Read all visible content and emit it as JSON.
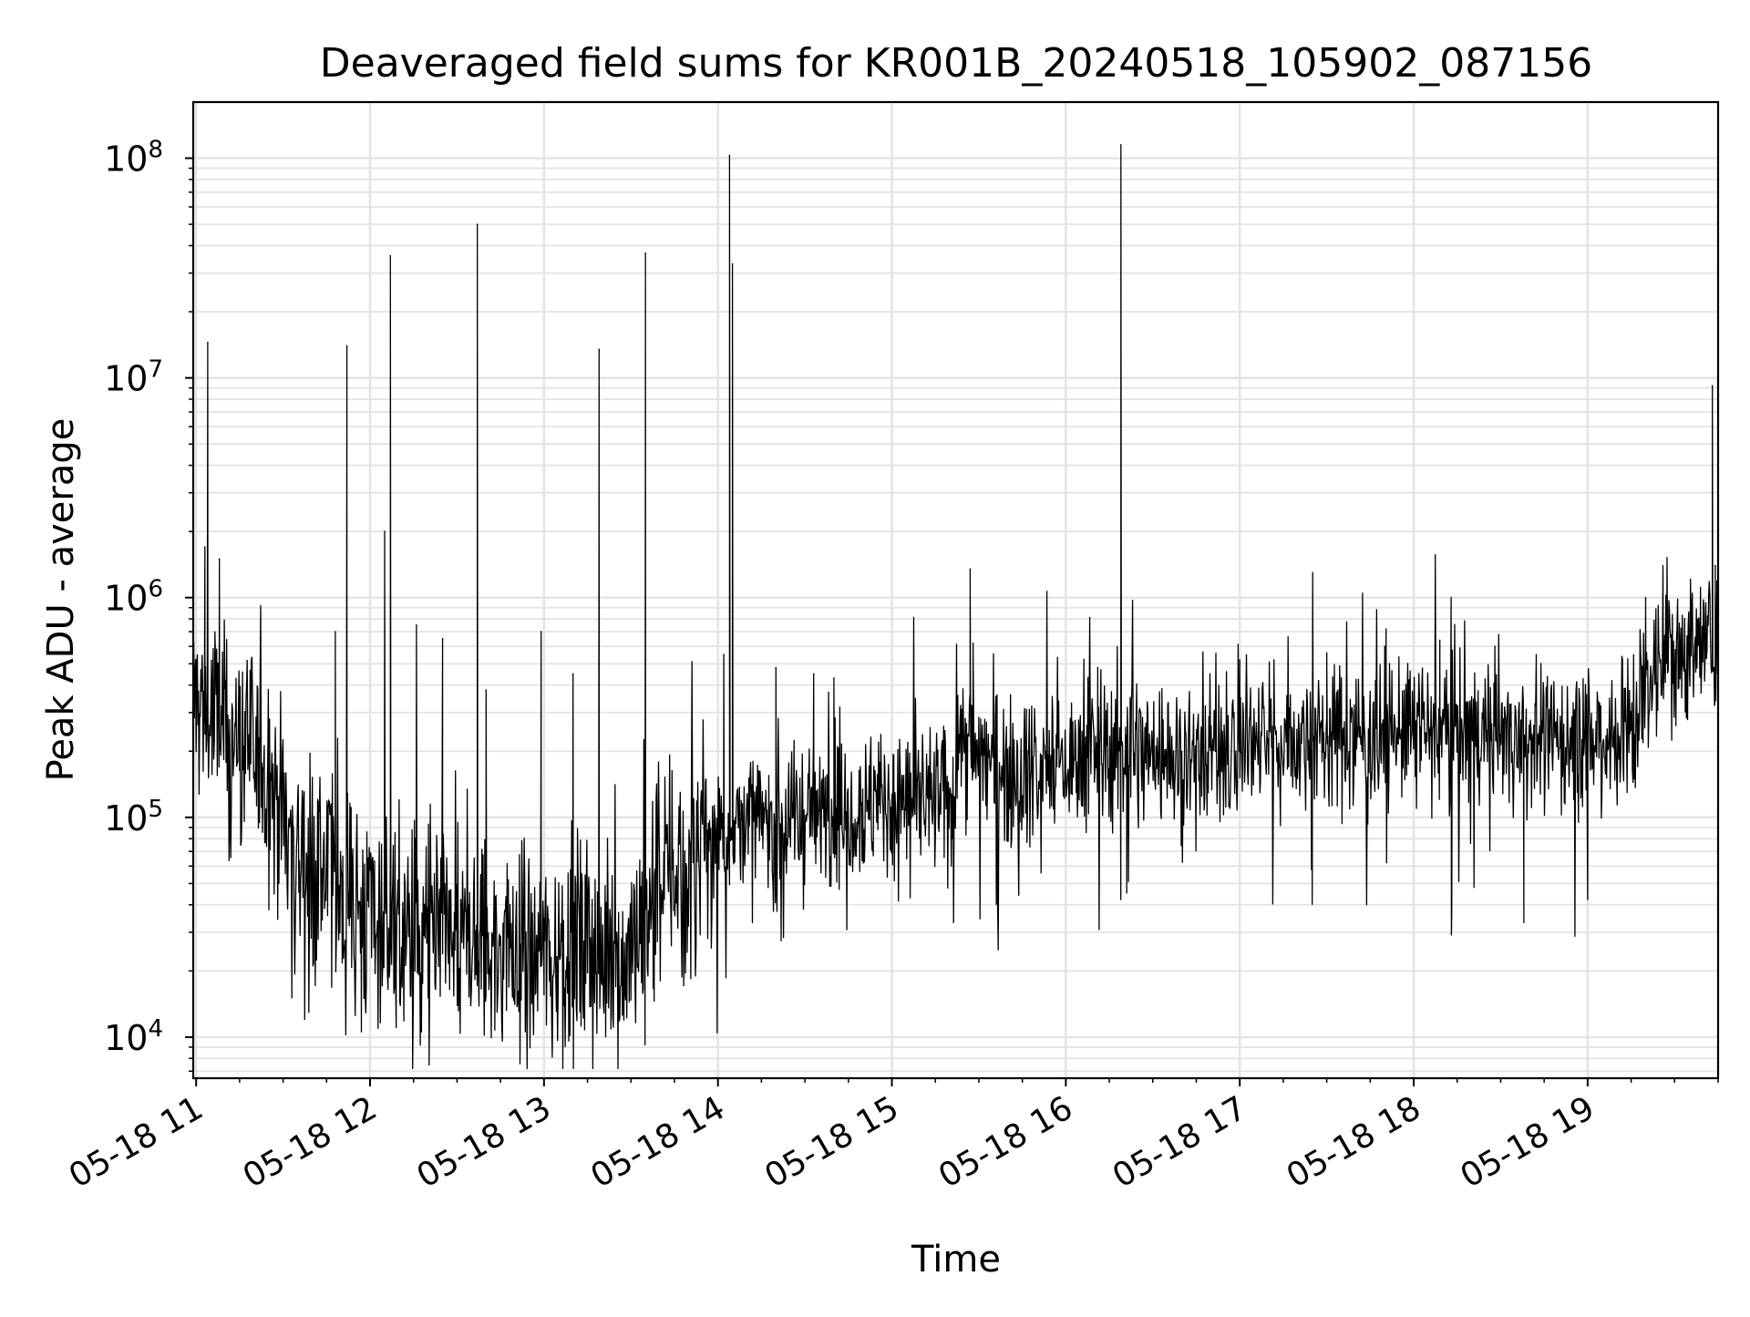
{
  "chart_data": {
    "type": "line",
    "title": "Deaveraged field sums for KR001B_20240518_105902_087156",
    "xlabel": "Time",
    "ylabel": "Peak ADU - average",
    "yscale": "log",
    "ylim": [
      6500,
      180000000
    ],
    "xlim": [
      "2024-05-18 10:59",
      "2024-05-18 19:45"
    ],
    "grid": true,
    "line_color": "#000000",
    "grid_color": "#e3e3e3",
    "x_ticks": [
      {
        "t": "2024-05-18 11:00",
        "label": "05-18 11"
      },
      {
        "t": "2024-05-18 12:00",
        "label": "05-18 12"
      },
      {
        "t": "2024-05-18 13:00",
        "label": "05-18 13"
      },
      {
        "t": "2024-05-18 14:00",
        "label": "05-18 14"
      },
      {
        "t": "2024-05-18 15:00",
        "label": "05-18 15"
      },
      {
        "t": "2024-05-18 16:00",
        "label": "05-18 16"
      },
      {
        "t": "2024-05-18 17:00",
        "label": "05-18 17"
      },
      {
        "t": "2024-05-18 18:00",
        "label": "05-18 18"
      },
      {
        "t": "2024-05-18 19:00",
        "label": "05-18 19"
      }
    ],
    "y_ticks": [
      {
        "value": 10000,
        "base": "10",
        "exp": "4"
      },
      {
        "value": 100000,
        "base": "10",
        "exp": "5"
      },
      {
        "value": 1000000,
        "base": "10",
        "exp": "6"
      },
      {
        "value": 10000000,
        "base": "10",
        "exp": "7"
      },
      {
        "value": 100000000,
        "base": "10",
        "exp": "8"
      }
    ],
    "series": [
      {
        "baseline": {
          "x": [
            "2024-05-18 10:59",
            "2024-05-18 11:05",
            "2024-05-18 11:15",
            "2024-05-18 11:25",
            "2024-05-18 11:35",
            "2024-05-18 11:45",
            "2024-05-18 11:55",
            "2024-05-18 12:10",
            "2024-05-18 12:30",
            "2024-05-18 12:50",
            "2024-05-18 13:10",
            "2024-05-18 13:25",
            "2024-05-18 13:32",
            "2024-05-18 13:40",
            "2024-05-18 13:50",
            "2024-05-18 14:00",
            "2024-05-18 14:20",
            "2024-05-18 14:40",
            "2024-05-18 15:00",
            "2024-05-18 15:20",
            "2024-05-18 15:23",
            "2024-05-18 15:40",
            "2024-05-18 16:00",
            "2024-05-18 16:20",
            "2024-05-18 16:40",
            "2024-05-18 17:00",
            "2024-05-18 17:30",
            "2024-05-18 18:00",
            "2024-05-18 18:30",
            "2024-05-18 19:00",
            "2024-05-18 19:15",
            "2024-05-18 19:25",
            "2024-05-18 19:45"
          ],
          "y": [
            350000,
            280000,
            220000,
            160000,
            70000,
            55000,
            40000,
            30000,
            26000,
            25000,
            26000,
            22000,
            30000,
            55000,
            60000,
            90000,
            95000,
            110000,
            120000,
            120000,
            220000,
            170000,
            170000,
            210000,
            190000,
            220000,
            230000,
            250000,
            240000,
            220000,
            260000,
            560000,
            620000
          ]
        },
        "spikes": [
          {
            "t": "2024-05-18 11:04",
            "y": 14500000
          },
          {
            "t": "2024-05-18 11:03",
            "y": 1700000
          },
          {
            "t": "2024-05-18 11:08",
            "y": 1500000
          },
          {
            "t": "2024-05-18 11:52",
            "y": 14000000
          },
          {
            "t": "2024-05-18 11:48",
            "y": 700000
          },
          {
            "t": "2024-05-18 12:05",
            "y": 2000000
          },
          {
            "t": "2024-05-18 12:07",
            "y": 36000000
          },
          {
            "t": "2024-05-18 12:16",
            "y": 750000
          },
          {
            "t": "2024-05-18 12:25",
            "y": 650000
          },
          {
            "t": "2024-05-18 12:37",
            "y": 50000000
          },
          {
            "t": "2024-05-18 12:40",
            "y": 380000
          },
          {
            "t": "2024-05-18 12:59",
            "y": 700000
          },
          {
            "t": "2024-05-18 13:10",
            "y": 450000
          },
          {
            "t": "2024-05-18 13:19",
            "y": 13500000
          },
          {
            "t": "2024-05-18 13:35",
            "y": 37000000
          },
          {
            "t": "2024-05-18 14:02",
            "y": 550000
          },
          {
            "t": "2024-05-18 14:04",
            "y": 103000000
          },
          {
            "t": "2024-05-18 14:05",
            "y": 33000000
          },
          {
            "t": "2024-05-18 14:20",
            "y": 480000
          },
          {
            "t": "2024-05-18 14:33",
            "y": 450000
          },
          {
            "t": "2024-05-18 14:40",
            "y": 430000
          },
          {
            "t": "2024-05-18 15:27",
            "y": 1350000
          },
          {
            "t": "2024-05-18 15:28",
            "y": 620000
          },
          {
            "t": "2024-05-18 16:19",
            "y": 115000000
          },
          {
            "t": "2024-05-18 16:11",
            "y": 480000
          },
          {
            "t": "2024-05-18 17:00",
            "y": 520000
          },
          {
            "t": "2024-05-18 17:30",
            "y": 560000
          },
          {
            "t": "2024-05-18 17:50",
            "y": 600000
          },
          {
            "t": "2024-05-18 18:09",
            "y": 640000
          },
          {
            "t": "2024-05-18 18:28",
            "y": 600000
          },
          {
            "t": "2024-05-18 19:20",
            "y": 1000000
          },
          {
            "t": "2024-05-18 19:43",
            "y": 9200000
          },
          {
            "t": "2024-05-18 19:44",
            "y": 1400000
          }
        ],
        "dips": [
          {
            "t": "2024-05-18 11:33",
            "y": 15000
          },
          {
            "t": "2024-05-18 11:57",
            "y": 10500
          },
          {
            "t": "2024-05-18 12:09",
            "y": 11000
          },
          {
            "t": "2024-05-18 12:20",
            "y": 15000
          },
          {
            "t": "2024-05-18 13:00",
            "y": 15500
          },
          {
            "t": "2024-05-18 13:27",
            "y": 12500
          },
          {
            "t": "2024-05-18 13:38",
            "y": 14500
          },
          {
            "t": "2024-05-18 15:36",
            "y": 40000
          },
          {
            "t": "2024-05-18 16:21",
            "y": 45000
          },
          {
            "t": "2024-05-18 17:25",
            "y": 40000
          },
          {
            "t": "2024-05-18 18:13",
            "y": 29000
          },
          {
            "t": "2024-05-18 18:38",
            "y": 33000
          },
          {
            "t": "2024-05-18 19:00",
            "y": 42000
          }
        ]
      }
    ]
  }
}
